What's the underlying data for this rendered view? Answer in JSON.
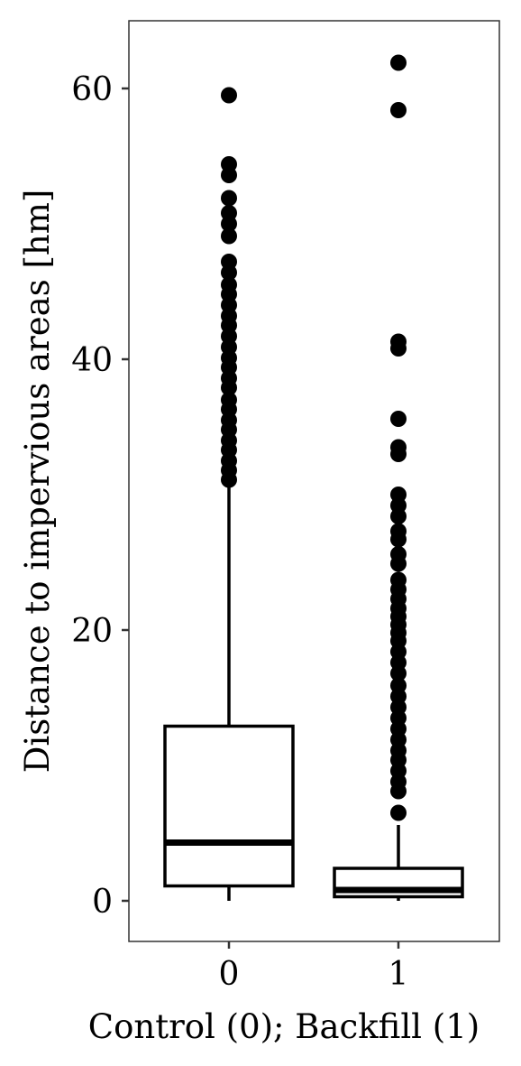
{
  "chart_data": {
    "type": "boxplot",
    "xlabel": "Control (0); Backfill (1)",
    "ylabel": "Distance to impervious areas [hm]",
    "ylim": [
      -3,
      65
    ],
    "yticks": [
      0,
      20,
      40,
      60
    ],
    "ytick_labels": [
      "0",
      "20",
      "40",
      "60"
    ],
    "grid": false,
    "categories": [
      "0",
      "1"
    ],
    "boxes": [
      {
        "category": "0",
        "min": 0,
        "q1": 1.1,
        "median": 4.3,
        "q3": 12.9,
        "whisker_high": 30.8,
        "outliers": [
          59.5,
          54.4,
          53.6,
          51.9,
          50.8,
          50.0,
          49.1,
          47.2,
          46.4,
          45.5,
          44.8,
          44.0,
          43.2,
          42.5,
          41.7,
          40.9,
          40.1,
          39.4,
          38.6,
          37.9,
          37.0,
          36.3,
          35.5,
          34.8,
          34.0,
          33.3,
          32.5,
          31.8,
          31.1
        ]
      },
      {
        "category": "1",
        "min": 0,
        "q1": 0.3,
        "median": 0.8,
        "q3": 2.4,
        "whisker_high": 5.6,
        "outliers": [
          61.9,
          58.4,
          41.3,
          40.8,
          35.6,
          33.5,
          33.0,
          30.0,
          29.2,
          28.4,
          27.3,
          26.7,
          25.6,
          24.9,
          23.7,
          23.0,
          22.3,
          21.6,
          21.0,
          20.4,
          19.8,
          19.2,
          18.4,
          17.6,
          16.8,
          15.9,
          15.1,
          14.3,
          13.5,
          12.7,
          11.9,
          11.1,
          10.4,
          9.6,
          8.8,
          8.1,
          6.5
        ]
      }
    ]
  }
}
